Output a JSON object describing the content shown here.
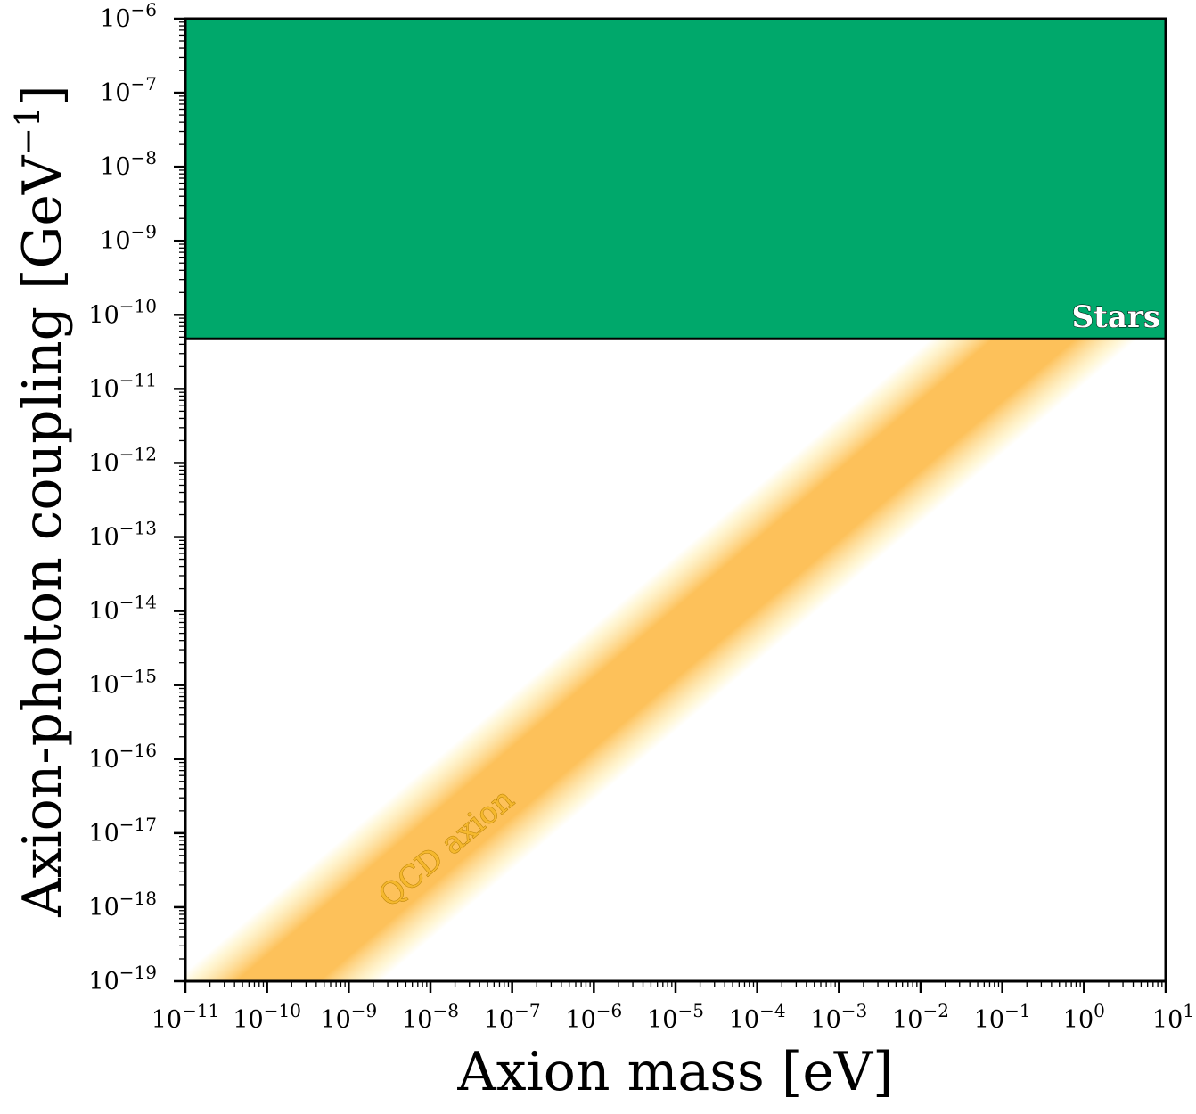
{
  "chart_data": {
    "type": "area",
    "title": "",
    "xlabel": "Axion mass [eV]",
    "ylabel_main": "Axion-photon coupling [GeV",
    "ylabel_sup": "−1",
    "ylabel_close": "]",
    "x_scale": "log",
    "y_scale": "log",
    "xlim": [
      1e-11,
      10
    ],
    "ylim": [
      1e-19,
      1e-06
    ],
    "x_tick_labels": [
      {
        "base": "10",
        "exp": "−11"
      },
      {
        "base": "10",
        "exp": "−10"
      },
      {
        "base": "10",
        "exp": "−9"
      },
      {
        "base": "10",
        "exp": "−8"
      },
      {
        "base": "10",
        "exp": "−7"
      },
      {
        "base": "10",
        "exp": "−6"
      },
      {
        "base": "10",
        "exp": "−5"
      },
      {
        "base": "10",
        "exp": "−4"
      },
      {
        "base": "10",
        "exp": "−3"
      },
      {
        "base": "10",
        "exp": "−2"
      },
      {
        "base": "10",
        "exp": "−1"
      },
      {
        "base": "10",
        "exp": "0"
      },
      {
        "base": "10",
        "exp": "1"
      }
    ],
    "y_tick_labels": [
      {
        "base": "10",
        "exp": "−19"
      },
      {
        "base": "10",
        "exp": "−18"
      },
      {
        "base": "10",
        "exp": "−17"
      },
      {
        "base": "10",
        "exp": "−16"
      },
      {
        "base": "10",
        "exp": "−15"
      },
      {
        "base": "10",
        "exp": "−14"
      },
      {
        "base": "10",
        "exp": "−13"
      },
      {
        "base": "10",
        "exp": "−12"
      },
      {
        "base": "10",
        "exp": "−11"
      },
      {
        "base": "10",
        "exp": "−10"
      },
      {
        "base": "10",
        "exp": "−9"
      },
      {
        "base": "10",
        "exp": "−8"
      },
      {
        "base": "10",
        "exp": "−7"
      },
      {
        "base": "10",
        "exp": "−6"
      }
    ],
    "regions": [
      {
        "name": "Stars",
        "color": "#00a86b",
        "y_lower": 4.8e-11,
        "y_upper": 1e-06,
        "x_range": [
          1e-11,
          10
        ]
      }
    ],
    "bands": [
      {
        "name": "QCD axion",
        "color": "#fdc15a",
        "edge_color": "#fff3c4",
        "line_start": [
          1.35e-10,
          1e-19
        ],
        "line_end": [
          0.25,
          4.8e-11
        ]
      }
    ],
    "grid": false,
    "legend": "none"
  },
  "labels": {
    "stars": "Stars",
    "qcd": "QCD axion"
  }
}
